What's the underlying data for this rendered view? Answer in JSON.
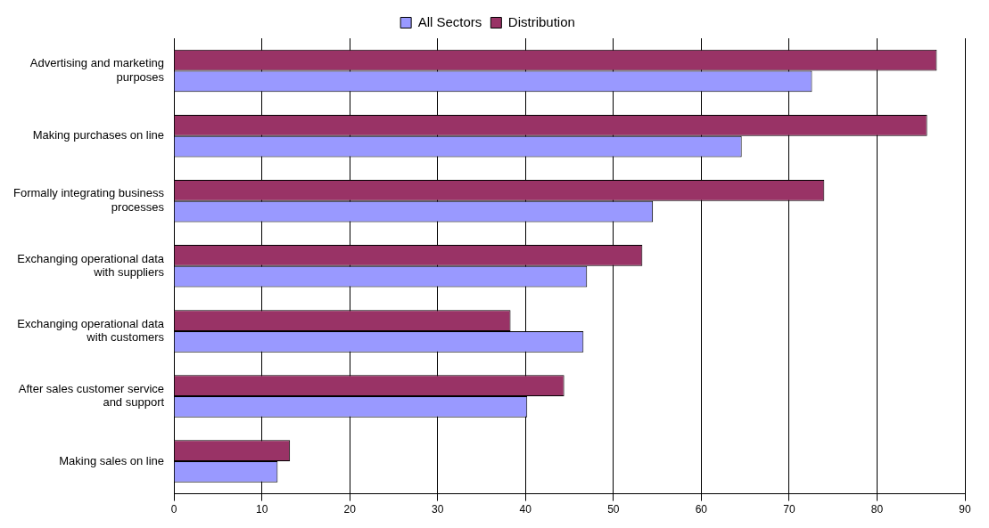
{
  "chart_data": {
    "type": "bar",
    "orientation": "horizontal",
    "categories": [
      "Advertising and marketing purposes",
      "Making purchases on line",
      "Formally integrating business processes",
      "Exchanging operational data with suppliers",
      "Exchanging operational data with customers",
      "After sales customer service and support",
      "Making sales on line"
    ],
    "series": [
      {
        "name": "Distribution",
        "color": "#993366",
        "values": [
          86.8,
          85.7,
          74.0,
          53.3,
          38.3,
          44.4,
          13.2
        ]
      },
      {
        "name": "All Sectors",
        "color": "#9999ff",
        "values": [
          72.6,
          64.6,
          54.5,
          47.0,
          46.6,
          40.2,
          11.8
        ]
      }
    ],
    "xlim": [
      0,
      90
    ],
    "xticks": [
      0,
      10,
      20,
      30,
      40,
      50,
      60,
      70,
      80,
      90
    ],
    "grid": "x",
    "legend": "top"
  }
}
